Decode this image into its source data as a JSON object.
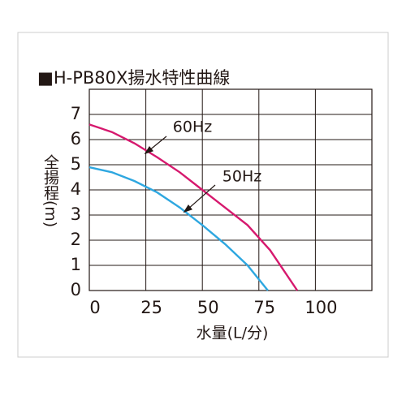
{
  "chart_data": {
    "type": "line",
    "title": "■H-PB80X揚水特性曲線",
    "x_label": "水量(L/分)",
    "y_label": "全揚程(m)",
    "xlim": [
      0,
      125
    ],
    "xticks": [
      0,
      25,
      50,
      75,
      100
    ],
    "ylim": [
      0,
      8
    ],
    "yticks": [
      0,
      1,
      2,
      3,
      4,
      5,
      6,
      7
    ],
    "grid": true,
    "series": [
      {
        "name": "60Hz",
        "color": "#d6196e",
        "x": [
          0,
          10,
          20,
          30,
          40,
          50,
          60,
          70,
          80,
          92
        ],
        "values": [
          6.6,
          6.3,
          5.85,
          5.3,
          4.7,
          4.0,
          3.3,
          2.6,
          1.6,
          0
        ]
      },
      {
        "name": "50Hz",
        "color": "#2ea7e0",
        "x": [
          0,
          10,
          20,
          30,
          40,
          50,
          60,
          70,
          79
        ],
        "values": [
          4.9,
          4.7,
          4.35,
          3.9,
          3.3,
          2.6,
          1.85,
          1.0,
          0
        ]
      }
    ]
  }
}
